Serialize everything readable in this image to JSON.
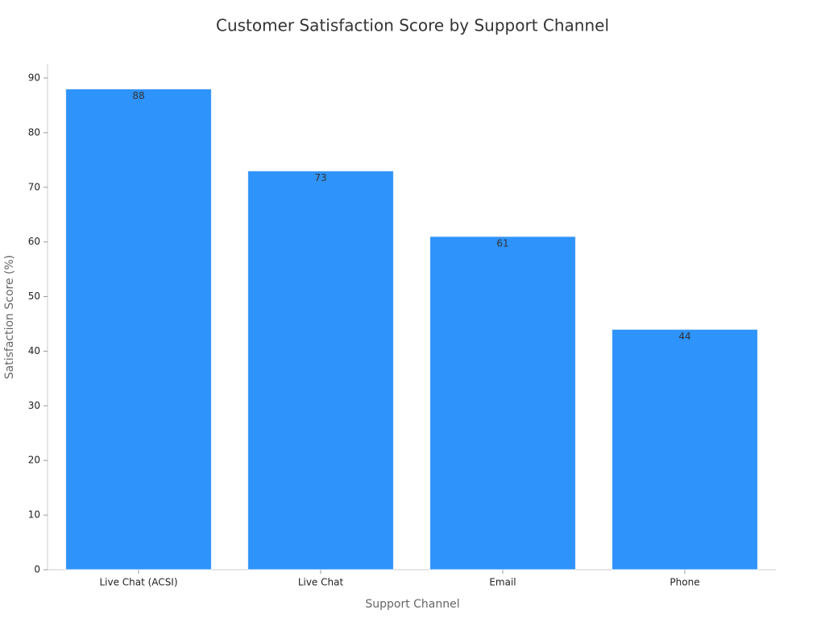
{
  "chart_data": {
    "type": "bar",
    "title": "Customer Satisfaction Score by Support Channel",
    "x_label": "Support Channel",
    "y_label": "Satisfaction Score (%)",
    "categories": [
      "Live Chat (ACSI)",
      "Live Chat",
      "Email",
      "Phone"
    ],
    "values": [
      88,
      73,
      61,
      44
    ],
    "color": "#2e93fa",
    "ylim": [
      0,
      92.5
    ],
    "yticks": [
      0,
      10,
      20,
      30,
      40,
      50,
      60,
      70,
      80,
      90
    ],
    "grid": false
  }
}
